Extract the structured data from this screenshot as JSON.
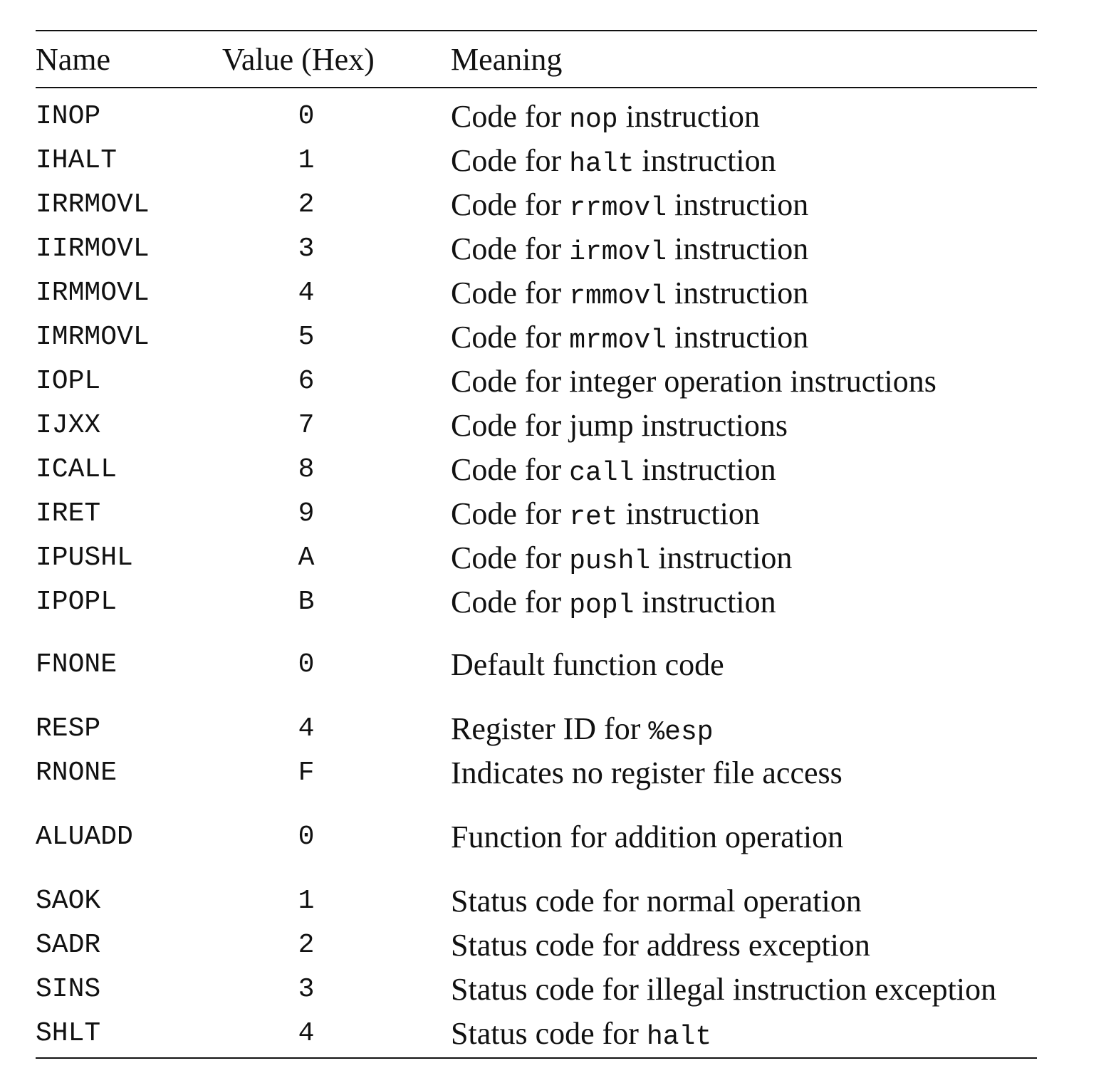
{
  "table": {
    "headers": {
      "name": "Name",
      "value": "Value (Hex)",
      "meaning": "Meaning"
    },
    "rows": [
      {
        "name": "INOP",
        "value": "0",
        "meaning": [
          {
            "t": "Code for "
          },
          {
            "t": "nop",
            "code": true
          },
          {
            "t": " instruction"
          }
        ]
      },
      {
        "name": "IHALT",
        "value": "1",
        "meaning": [
          {
            "t": "Code for "
          },
          {
            "t": "halt",
            "code": true
          },
          {
            "t": " instruction"
          }
        ]
      },
      {
        "name": "IRRMOVL",
        "value": "2",
        "meaning": [
          {
            "t": "Code for "
          },
          {
            "t": "rrmovl",
            "code": true
          },
          {
            "t": " instruction"
          }
        ]
      },
      {
        "name": "IIRMOVL",
        "value": "3",
        "meaning": [
          {
            "t": "Code for "
          },
          {
            "t": "irmovl",
            "code": true
          },
          {
            "t": " instruction"
          }
        ]
      },
      {
        "name": "IRMMOVL",
        "value": "4",
        "meaning": [
          {
            "t": "Code for "
          },
          {
            "t": "rmmovl",
            "code": true
          },
          {
            "t": " instruction"
          }
        ]
      },
      {
        "name": "IMRMOVL",
        "value": "5",
        "meaning": [
          {
            "t": "Code for "
          },
          {
            "t": "mrmovl",
            "code": true
          },
          {
            "t": " instruction"
          }
        ]
      },
      {
        "name": "IOPL",
        "value": "6",
        "meaning": [
          {
            "t": "Code for integer operation instructions"
          }
        ]
      },
      {
        "name": "IJXX",
        "value": "7",
        "meaning": [
          {
            "t": "Code for jump instructions"
          }
        ]
      },
      {
        "name": "ICALL",
        "value": "8",
        "meaning": [
          {
            "t": "Code for "
          },
          {
            "t": "call",
            "code": true
          },
          {
            "t": " instruction"
          }
        ]
      },
      {
        "name": "IRET",
        "value": "9",
        "meaning": [
          {
            "t": "Code for "
          },
          {
            "t": "ret",
            "code": true
          },
          {
            "t": " instruction"
          }
        ]
      },
      {
        "name": "IPUSHL",
        "value": "A",
        "meaning": [
          {
            "t": "Code for "
          },
          {
            "t": "pushl",
            "code": true
          },
          {
            "t": " instruction"
          }
        ]
      },
      {
        "name": "IPOPL",
        "value": "B",
        "meaning": [
          {
            "t": "Code for "
          },
          {
            "t": "popl",
            "code": true
          },
          {
            "t": " instruction"
          }
        ]
      },
      {
        "name": "FNONE",
        "value": "0",
        "meaning": [
          {
            "t": "Default function code"
          }
        ]
      },
      {
        "name": "RESP",
        "value": "4",
        "meaning": [
          {
            "t": "Register ID for "
          },
          {
            "t": "%esp",
            "code": true
          }
        ]
      },
      {
        "name": "RNONE",
        "value": "F",
        "meaning": [
          {
            "t": "Indicates no register file access"
          }
        ]
      },
      {
        "name": "ALUADD",
        "value": "0",
        "meaning": [
          {
            "t": "Function for addition operation"
          }
        ]
      },
      {
        "name": "SAOK",
        "value": "1",
        "meaning": [
          {
            "t": "Status code for normal operation"
          }
        ]
      },
      {
        "name": "SADR",
        "value": "2",
        "meaning": [
          {
            "t": "Status code for address exception"
          }
        ]
      },
      {
        "name": "SINS",
        "value": "3",
        "meaning": [
          {
            "t": "Status code for illegal instruction exception"
          }
        ]
      },
      {
        "name": "SHLT",
        "value": "4",
        "meaning": [
          {
            "t": "Status code for "
          },
          {
            "t": "halt",
            "code": true
          }
        ]
      }
    ]
  }
}
